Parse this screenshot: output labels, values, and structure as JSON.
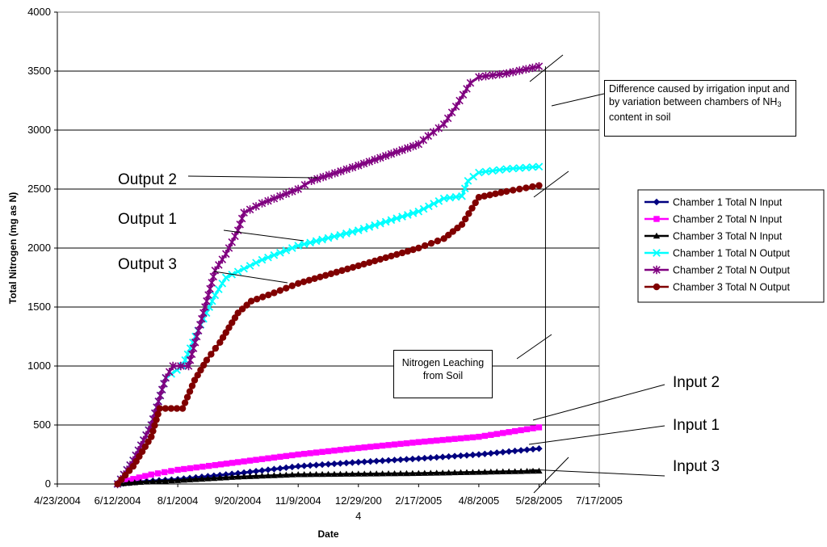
{
  "chart_data": {
    "type": "line",
    "title": "",
    "xlabel": "Date",
    "ylabel": "Total Nitrogen (mg as N)",
    "xlim": [
      "2004-04-23",
      "2005-07-17"
    ],
    "ylim": [
      0,
      4000
    ],
    "grid": "horizontal",
    "legend_position": "right",
    "x_tick_labels": [
      "4/23/2004",
      "6/12/2004",
      "8/1/2004",
      "9/20/2004",
      "11/9/2004",
      "12/29/200\n4",
      "2/17/2005",
      "4/8/2005",
      "5/28/2005",
      "7/17/2005"
    ],
    "y_tick_labels": [
      "0",
      "500",
      "1000",
      "1500",
      "2000",
      "2500",
      "3000",
      "3500",
      "4000"
    ],
    "series": [
      {
        "name": "Chamber 1 Total N Input",
        "color": "#000080",
        "marker": "diamond",
        "points": [
          [
            "2004-06-12",
            0
          ],
          [
            "2004-07-01",
            20
          ],
          [
            "2004-08-01",
            40
          ],
          [
            "2004-09-20",
            90
          ],
          [
            "2004-11-09",
            150
          ],
          [
            "2004-12-29",
            185
          ],
          [
            "2005-02-17",
            215
          ],
          [
            "2005-04-08",
            250
          ],
          [
            "2005-05-28",
            300
          ]
        ]
      },
      {
        "name": "Chamber 2 Total N Input",
        "color": "#FF00FF",
        "marker": "square",
        "points": [
          [
            "2004-06-12",
            0
          ],
          [
            "2004-06-20",
            30
          ],
          [
            "2004-07-10",
            80
          ],
          [
            "2004-08-01",
            120
          ],
          [
            "2004-09-01",
            160
          ],
          [
            "2004-09-20",
            185
          ],
          [
            "2004-11-09",
            250
          ],
          [
            "2004-12-29",
            305
          ],
          [
            "2005-02-17",
            355
          ],
          [
            "2005-04-08",
            400
          ],
          [
            "2005-05-28",
            480
          ]
        ]
      },
      {
        "name": "Chamber 3 Total N Input",
        "color": "#000000",
        "marker": "triangle",
        "points": [
          [
            "2004-06-12",
            0
          ],
          [
            "2004-07-01",
            15
          ],
          [
            "2004-08-01",
            30
          ],
          [
            "2004-09-20",
            60
          ],
          [
            "2004-11-09",
            80
          ],
          [
            "2004-12-29",
            85
          ],
          [
            "2005-02-17",
            90
          ],
          [
            "2005-04-08",
            100
          ],
          [
            "2005-05-28",
            110
          ]
        ]
      },
      {
        "name": "Chamber 1 Total N Output",
        "color": "#00FFFF",
        "marker": "x",
        "points": [
          [
            "2004-06-12",
            0
          ],
          [
            "2004-06-25",
            200
          ],
          [
            "2004-07-10",
            500
          ],
          [
            "2004-07-22",
            900
          ],
          [
            "2004-08-05",
            1000
          ],
          [
            "2004-08-20",
            1350
          ],
          [
            "2004-09-01",
            1600
          ],
          [
            "2004-09-10",
            1750
          ],
          [
            "2004-09-20",
            1800
          ],
          [
            "2004-10-10",
            1900
          ],
          [
            "2004-11-09",
            2020
          ],
          [
            "2004-12-29",
            2150
          ],
          [
            "2005-02-17",
            2310
          ],
          [
            "2005-03-10",
            2420
          ],
          [
            "2005-03-25",
            2440
          ],
          [
            "2005-03-30",
            2570
          ],
          [
            "2005-04-08",
            2640
          ],
          [
            "2005-05-01",
            2670
          ],
          [
            "2005-05-28",
            2690
          ]
        ]
      },
      {
        "name": "Chamber 2 Total N Output",
        "color": "#800080",
        "marker": "star",
        "points": [
          [
            "2004-06-12",
            0
          ],
          [
            "2004-06-25",
            200
          ],
          [
            "2004-07-10",
            500
          ],
          [
            "2004-07-22",
            900
          ],
          [
            "2004-07-28",
            1000
          ],
          [
            "2004-08-10",
            1000
          ],
          [
            "2004-08-25",
            1550
          ],
          [
            "2004-09-01",
            1810
          ],
          [
            "2004-09-10",
            1950
          ],
          [
            "2004-09-20",
            2150
          ],
          [
            "2004-09-25",
            2300
          ],
          [
            "2004-10-10",
            2380
          ],
          [
            "2004-11-09",
            2500
          ],
          [
            "2004-11-20",
            2570
          ],
          [
            "2004-12-29",
            2700
          ],
          [
            "2005-02-17",
            2880
          ],
          [
            "2005-02-25",
            2950
          ],
          [
            "2005-03-10",
            3050
          ],
          [
            "2005-03-20",
            3200
          ],
          [
            "2005-04-01",
            3400
          ],
          [
            "2005-04-08",
            3450
          ],
          [
            "2005-05-01",
            3480
          ],
          [
            "2005-05-28",
            3540
          ]
        ]
      },
      {
        "name": "Chamber 3 Total N Output",
        "color": "#800000",
        "marker": "circle",
        "points": [
          [
            "2004-06-12",
            0
          ],
          [
            "2004-06-25",
            150
          ],
          [
            "2004-07-10",
            400
          ],
          [
            "2004-07-17",
            640
          ],
          [
            "2004-08-05",
            640
          ],
          [
            "2004-08-15",
            880
          ],
          [
            "2004-08-25",
            1050
          ],
          [
            "2004-09-05",
            1200
          ],
          [
            "2004-09-20",
            1450
          ],
          [
            "2004-10-01",
            1550
          ],
          [
            "2004-10-20",
            1620
          ],
          [
            "2004-11-09",
            1700
          ],
          [
            "2004-12-29",
            1850
          ],
          [
            "2005-02-17",
            2000
          ],
          [
            "2005-03-10",
            2080
          ],
          [
            "2005-03-25",
            2200
          ],
          [
            "2005-04-08",
            2430
          ],
          [
            "2005-05-01",
            2480
          ],
          [
            "2005-05-28",
            2530
          ]
        ]
      }
    ],
    "annotations": {
      "output2": "Output 2",
      "output1": "Output 1",
      "output3": "Output 3",
      "input2": "Input 2",
      "input1": "Input 1",
      "input3": "Input 3",
      "irrigation_note_prefix": "Difference caused by irrigation input and by variation between chambers of NH",
      "irrigation_note_sub": "3",
      "irrigation_note_suffix": " content in soil",
      "leaching_note": "Nitrogen Leaching from Soil"
    }
  }
}
